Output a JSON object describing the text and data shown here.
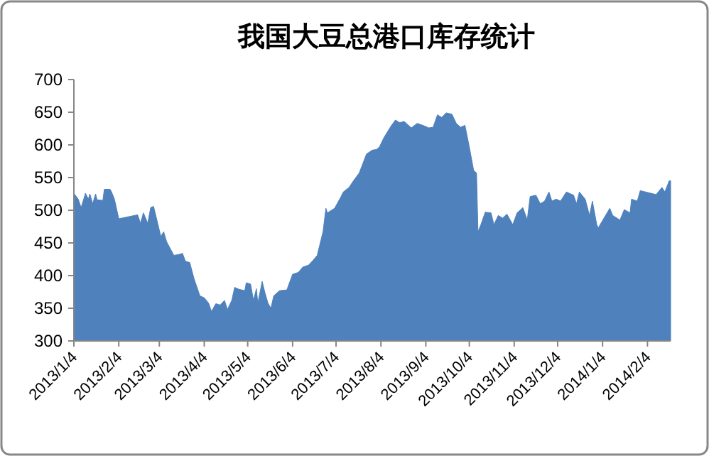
{
  "chart_data": {
    "type": "area",
    "title": "我国大豆总港口库存统计",
    "color": "#4f81bd",
    "x": [
      "2013-01-04",
      "2013-01-07",
      "2013-01-09",
      "2013-01-12",
      "2013-01-14",
      "2013-01-15",
      "2013-01-17",
      "2013-01-19",
      "2013-01-20",
      "2013-01-24",
      "2013-01-25",
      "2013-01-29",
      "2013-01-30",
      "2013-02-01",
      "2013-02-04",
      "2013-02-17",
      "2013-02-19",
      "2013-02-21",
      "2013-02-24",
      "2013-02-26",
      "2013-02-28",
      "2013-03-02",
      "2013-03-05",
      "2013-03-07",
      "2013-03-09",
      "2013-03-14",
      "2013-03-17",
      "2013-03-20",
      "2013-03-22",
      "2013-03-25",
      "2013-03-28",
      "2013-04-01",
      "2013-04-04",
      "2013-04-07",
      "2013-04-09",
      "2013-04-12",
      "2013-04-15",
      "2013-04-18",
      "2013-04-20",
      "2013-04-23",
      "2013-04-25",
      "2013-04-28",
      "2013-05-02",
      "2013-05-03",
      "2013-05-06",
      "2013-05-08",
      "2013-05-10",
      "2013-05-11",
      "2013-05-14",
      "2013-05-16",
      "2013-05-18",
      "2013-05-20",
      "2013-05-22",
      "2013-05-26",
      "2013-05-31",
      "2013-06-04",
      "2013-06-08",
      "2013-06-11",
      "2013-06-15",
      "2013-06-18",
      "2013-06-21",
      "2013-06-25",
      "2013-06-27",
      "2013-06-28",
      "2013-07-03",
      "2013-07-07",
      "2013-07-09",
      "2013-07-13",
      "2013-07-16",
      "2013-07-20",
      "2013-07-25",
      "2013-07-29",
      "2013-08-01",
      "2013-08-03",
      "2013-08-06",
      "2013-08-11",
      "2013-08-14",
      "2013-08-17",
      "2013-08-20",
      "2013-08-25",
      "2013-08-29",
      "2013-09-03",
      "2013-09-06",
      "2013-09-09",
      "2013-09-12",
      "2013-09-15",
      "2013-09-18",
      "2013-09-22",
      "2013-09-25",
      "2013-09-28",
      "2013-10-01",
      "2013-10-04",
      "2013-10-07",
      "2013-10-09",
      "2013-10-10",
      "2013-10-12",
      "2013-10-15",
      "2013-10-19",
      "2013-10-21",
      "2013-10-24",
      "2013-10-27",
      "2013-10-30",
      "2013-11-03",
      "2013-11-06",
      "2013-11-10",
      "2013-11-13",
      "2013-11-15",
      "2013-11-19",
      "2013-11-22",
      "2013-11-25",
      "2013-11-28",
      "2013-11-30",
      "2013-12-03",
      "2013-12-06",
      "2013-12-10",
      "2013-12-15",
      "2013-12-17",
      "2013-12-19",
      "2013-12-23",
      "2013-12-26",
      "2013-12-28",
      "2013-12-31",
      "2014-01-01",
      "2014-01-05",
      "2014-01-09",
      "2014-01-11",
      "2014-01-16",
      "2014-01-19",
      "2014-01-23",
      "2014-01-24",
      "2014-01-28",
      "2014-01-30",
      "2014-02-10",
      "2014-02-14",
      "2014-02-16",
      "2014-02-19",
      "2014-02-20"
    ],
    "values": [
      526,
      517,
      504,
      526,
      517,
      525,
      510,
      525,
      516,
      515,
      532,
      532,
      528,
      517,
      487,
      493,
      480,
      496,
      480,
      504,
      506,
      488,
      460,
      467,
      452,
      431,
      432,
      434,
      422,
      420,
      395,
      369,
      366,
      358,
      345,
      357,
      355,
      362,
      348,
      362,
      382,
      379,
      377,
      389,
      387,
      362,
      380,
      358,
      391,
      373,
      358,
      350,
      369,
      377,
      378,
      402,
      405,
      413,
      416,
      423,
      431,
      467,
      503,
      496,
      503,
      519,
      528,
      535,
      545,
      557,
      586,
      592,
      593,
      597,
      611,
      629,
      638,
      634,
      636,
      626,
      633,
      629,
      626,
      627,
      646,
      642,
      649,
      647,
      633,
      627,
      630,
      597,
      561,
      557,
      467,
      478,
      497,
      496,
      478,
      492,
      488,
      494,
      478,
      496,
      504,
      485,
      521,
      523,
      510,
      514,
      528,
      514,
      517,
      514,
      528,
      523,
      510,
      528,
      517,
      492,
      514,
      478,
      473,
      488,
      503,
      492,
      485,
      501,
      496,
      517,
      514,
      530,
      524,
      535,
      528,
      545,
      545
    ],
    "xlim": [
      "2013-01-04",
      "2014-02-20"
    ],
    "ylim": [
      300,
      700
    ],
    "yticks": [
      300,
      350,
      400,
      450,
      500,
      550,
      600,
      650,
      700
    ],
    "xticks": [
      {
        "value": "2013-01-04",
        "label": "2013/1/4"
      },
      {
        "value": "2013-02-04",
        "label": "2013/2/4"
      },
      {
        "value": "2013-03-04",
        "label": "2013/3/4"
      },
      {
        "value": "2013-04-04",
        "label": "2013/4/4"
      },
      {
        "value": "2013-05-04",
        "label": "2013/5/4"
      },
      {
        "value": "2013-06-04",
        "label": "2013/6/4"
      },
      {
        "value": "2013-07-04",
        "label": "2013/7/4"
      },
      {
        "value": "2013-08-04",
        "label": "2013/8/4"
      },
      {
        "value": "2013-09-04",
        "label": "2013/9/4"
      },
      {
        "value": "2013-10-04",
        "label": "2013/10/4"
      },
      {
        "value": "2013-11-04",
        "label": "2013/11/4"
      },
      {
        "value": "2013-12-04",
        "label": "2013/12/4"
      },
      {
        "value": "2014-01-04",
        "label": "2014/1/4"
      },
      {
        "value": "2014-02-04",
        "label": "2014/2/4"
      }
    ]
  }
}
